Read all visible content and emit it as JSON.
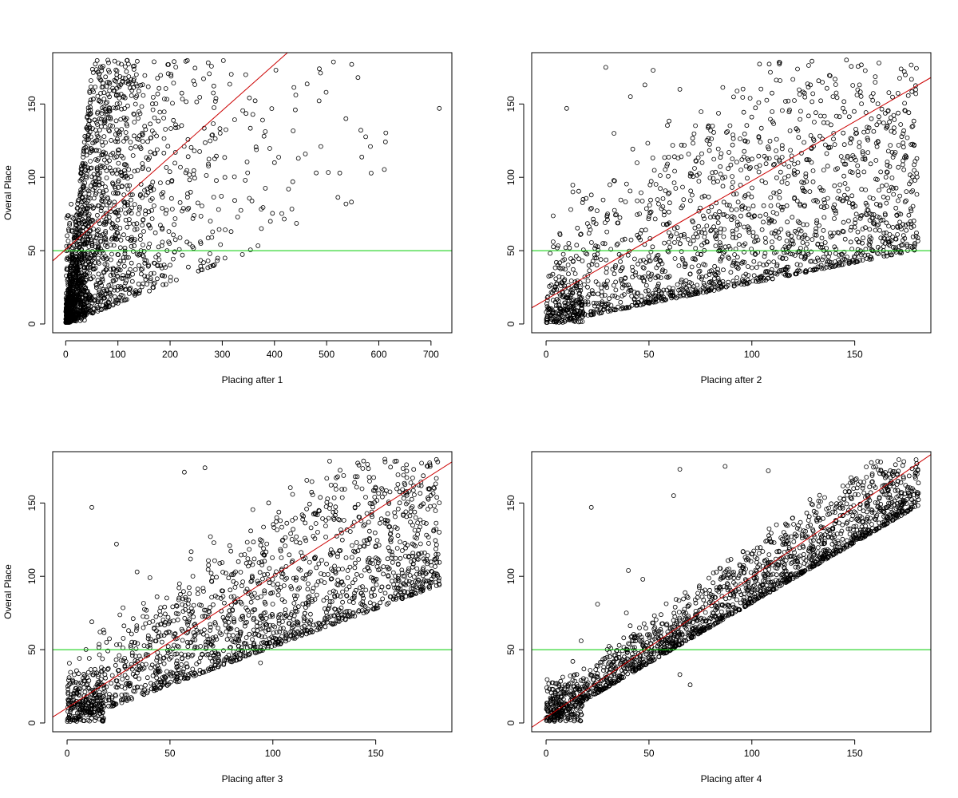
{
  "chart_data": [
    {
      "type": "scatter",
      "xlabel": "Placing after 1",
      "ylabel": "Overal Place",
      "xlim": [
        -25,
        740
      ],
      "ylim": [
        -6,
        185
      ],
      "xticks": [
        0,
        100,
        200,
        300,
        400,
        500,
        600,
        700
      ],
      "yticks": [
        0,
        50,
        100,
        150
      ],
      "hline": {
        "y": 50,
        "color": "#00cc00"
      },
      "fit_line": {
        "points": [
          [
            -25,
            43
          ],
          [
            425,
            185
          ]
        ],
        "color": "#cc0000"
      },
      "outliers": [
        [
          716,
          147
        ],
        [
          584,
          121
        ],
        [
          560,
          168
        ],
        [
          548,
          177
        ],
        [
          537,
          140
        ],
        [
          499,
          158
        ],
        [
          486,
          174
        ],
        [
          489,
          121
        ],
        [
          480,
          103
        ],
        [
          435,
          97
        ],
        [
          427,
          92
        ],
        [
          440,
          146
        ],
        [
          400,
          110
        ],
        [
          380,
          128
        ],
        [
          344,
          98
        ],
        [
          305,
          100
        ],
        [
          293,
          78
        ],
        [
          317,
          63
        ],
        [
          280,
          59
        ],
        [
          258,
          56
        ],
        [
          212,
          30
        ],
        [
          192,
          27
        ],
        [
          223,
          77
        ],
        [
          246,
          74
        ]
      ],
      "cloud": {
        "n": 1680,
        "seed": 11,
        "x_max": 720,
        "x_exp_mean": 90,
        "slope_lo": 0.14,
        "slope_hi": 3.2,
        "cap": 180,
        "dense_corner": 220
      }
    },
    {
      "type": "scatter",
      "xlabel": "Placing after 2",
      "ylabel": "",
      "xlim": [
        -7,
        187
      ],
      "ylim": [
        -6,
        185
      ],
      "xticks": [
        0,
        50,
        100,
        150
      ],
      "yticks": [
        0,
        50,
        100,
        150
      ],
      "hline": {
        "y": 50,
        "color": "#00cc00"
      },
      "fit_line": {
        "points": [
          [
            -7,
            11
          ],
          [
            187,
            168
          ]
        ],
        "color": "#cc0000"
      },
      "outliers": [
        [
          29,
          175
        ],
        [
          52,
          173
        ],
        [
          48,
          163
        ],
        [
          10,
          147
        ],
        [
          41,
          155
        ],
        [
          33,
          130
        ],
        [
          65,
          160
        ],
        [
          18,
          85
        ],
        [
          22,
          88
        ],
        [
          12,
          78
        ],
        [
          11,
          55
        ],
        [
          5,
          42
        ],
        [
          9,
          44
        ],
        [
          150,
          66
        ],
        [
          170,
          79
        ],
        [
          137,
          43
        ],
        [
          115,
          45
        ]
      ],
      "cloud": {
        "n": 1680,
        "seed": 22,
        "slope_lo": 0.28,
        "spread_top": 85,
        "cap": 180,
        "dense_corner": 150
      }
    },
    {
      "type": "scatter",
      "xlabel": "Placing after 3",
      "ylabel": "Overal Place",
      "xlim": [
        -7,
        187
      ],
      "ylim": [
        -6,
        185
      ],
      "xticks": [
        0,
        50,
        100,
        150
      ],
      "yticks": [
        0,
        50,
        100,
        150
      ],
      "hline": {
        "y": 50,
        "color": "#00cc00"
      },
      "fit_line": {
        "points": [
          [
            -7,
            4
          ],
          [
            187,
            178
          ]
        ],
        "color": "#cc0000"
      },
      "outliers": [
        [
          12,
          147
        ],
        [
          24,
          122
        ],
        [
          57,
          171
        ],
        [
          67,
          174
        ],
        [
          34,
          103
        ],
        [
          12,
          69
        ],
        [
          6,
          44
        ],
        [
          16,
          62
        ],
        [
          94,
          41
        ],
        [
          88,
          49
        ]
      ],
      "cloud": {
        "n": 1680,
        "seed": 33,
        "slope_lo": 0.52,
        "spread_top": 60,
        "cap": 180,
        "dense_corner": 170
      }
    },
    {
      "type": "scatter",
      "xlabel": "Placing after 4",
      "ylabel": "",
      "xlim": [
        -7,
        187
      ],
      "ylim": [
        -6,
        185
      ],
      "xticks": [
        0,
        50,
        100,
        150
      ],
      "yticks": [
        0,
        50,
        100,
        150
      ],
      "hline": {
        "y": 50,
        "color": "#00cc00"
      },
      "fit_line": {
        "points": [
          [
            -7,
            -3
          ],
          [
            187,
            183
          ]
        ],
        "color": "#cc0000"
      },
      "outliers": [
        [
          22,
          147
        ],
        [
          62,
          155
        ],
        [
          65,
          173
        ],
        [
          87,
          175
        ],
        [
          108,
          172
        ],
        [
          40,
          104
        ],
        [
          47,
          98
        ],
        [
          25,
          81
        ],
        [
          39,
          75
        ],
        [
          17,
          56
        ],
        [
          13,
          42
        ],
        [
          70,
          26
        ],
        [
          65,
          33
        ]
      ],
      "cloud": {
        "n": 1680,
        "seed": 44,
        "slope_lo": 0.82,
        "spread_top": 26,
        "cap": 180,
        "dense_corner": 190
      }
    }
  ]
}
